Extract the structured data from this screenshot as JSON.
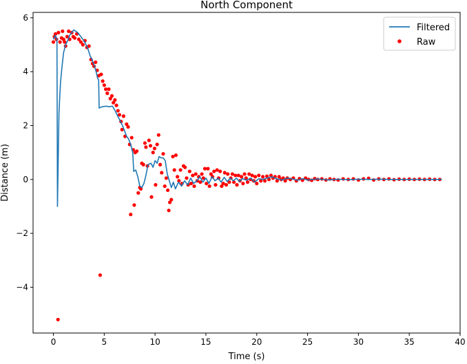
{
  "chart_data": {
    "type": "scatter",
    "title": "North Component",
    "xlabel": "Time (s)",
    "ylabel": "Distance (m)",
    "xlim": [
      -2,
      40
    ],
    "ylim": [
      -5.7,
      6.2
    ],
    "xticks": [
      0,
      5,
      10,
      15,
      20,
      25,
      30,
      35,
      40
    ],
    "yticks": [
      -4,
      -2,
      0,
      2,
      4,
      6
    ],
    "xtick_labels": [
      "0",
      "5",
      "10",
      "15",
      "20",
      "25",
      "30",
      "35",
      "40"
    ],
    "ytick_labels": [
      "−4",
      "−2",
      "0",
      "2",
      "4",
      "6"
    ],
    "grid": false,
    "legend": {
      "position": "top-right",
      "entries": [
        {
          "label": "Filtered",
          "marker": "line",
          "color": "#1f77b4"
        },
        {
          "label": "Raw",
          "marker": "dot",
          "color": "#ff0000"
        }
      ]
    },
    "series": [
      {
        "name": "Filtered",
        "kind": "line",
        "color": "#1f77b4",
        "points": [
          [
            0.0,
            5.2
          ],
          [
            0.2,
            5.35
          ],
          [
            0.35,
            5.2
          ],
          [
            0.4,
            -1.0
          ],
          [
            0.55,
            2.5
          ],
          [
            0.7,
            3.6
          ],
          [
            0.85,
            4.2
          ],
          [
            1.0,
            4.7
          ],
          [
            1.2,
            5.0
          ],
          [
            1.4,
            5.15
          ],
          [
            1.6,
            5.35
          ],
          [
            1.8,
            5.45
          ],
          [
            2.0,
            5.55
          ],
          [
            2.2,
            5.5
          ],
          [
            2.4,
            5.45
          ],
          [
            2.6,
            5.35
          ],
          [
            2.8,
            5.25
          ],
          [
            3.0,
            5.15
          ],
          [
            3.2,
            5.0
          ],
          [
            3.4,
            4.85
          ],
          [
            3.6,
            4.6
          ],
          [
            3.8,
            4.45
          ],
          [
            4.0,
            4.25
          ],
          [
            4.2,
            4.0
          ],
          [
            4.35,
            3.75
          ],
          [
            4.45,
            3.7
          ],
          [
            4.5,
            2.65
          ],
          [
            4.8,
            2.7
          ],
          [
            5.2,
            2.72
          ],
          [
            5.5,
            2.7
          ],
          [
            5.8,
            2.72
          ],
          [
            6.0,
            2.6
          ],
          [
            6.2,
            2.45
          ],
          [
            6.4,
            2.3
          ],
          [
            6.6,
            2.15
          ],
          [
            6.8,
            2.0
          ],
          [
            7.0,
            1.8
          ],
          [
            7.2,
            1.6
          ],
          [
            7.4,
            1.5
          ],
          [
            7.6,
            1.3
          ],
          [
            7.8,
            1.0
          ],
          [
            7.9,
            0.3
          ],
          [
            8.1,
            0.35
          ],
          [
            8.3,
            0.1
          ],
          [
            8.5,
            -0.25
          ],
          [
            8.7,
            -0.3
          ],
          [
            8.9,
            -0.15
          ],
          [
            9.1,
            0.15
          ],
          [
            9.3,
            0.55
          ],
          [
            9.6,
            0.6
          ],
          [
            9.8,
            0.45
          ],
          [
            10.0,
            0.7
          ],
          [
            10.2,
            0.6
          ],
          [
            10.4,
            0.85
          ],
          [
            10.6,
            0.8
          ],
          [
            10.8,
            0.8
          ],
          [
            11.0,
            0.7
          ],
          [
            11.2,
            0.2
          ],
          [
            11.4,
            -0.05
          ],
          [
            11.6,
            -0.3
          ],
          [
            11.8,
            -0.1
          ],
          [
            12.0,
            -0.35
          ],
          [
            12.3,
            -0.1
          ],
          [
            12.6,
            -0.25
          ],
          [
            12.9,
            -0.05
          ],
          [
            13.2,
            -0.2
          ],
          [
            13.5,
            0.05
          ],
          [
            13.8,
            -0.15
          ],
          [
            14.1,
            -0.05
          ],
          [
            14.4,
            0.1
          ],
          [
            14.7,
            -0.1
          ],
          [
            15.0,
            0.05
          ],
          [
            15.3,
            -0.15
          ],
          [
            15.6,
            0.1
          ],
          [
            15.9,
            -0.05
          ],
          [
            16.2,
            0.05
          ],
          [
            16.5,
            -0.1
          ],
          [
            16.8,
            0.08
          ],
          [
            17.1,
            -0.08
          ],
          [
            17.4,
            0.05
          ],
          [
            17.7,
            -0.05
          ],
          [
            18.0,
            0.05
          ],
          [
            18.3,
            -0.08
          ],
          [
            18.6,
            0.03
          ],
          [
            19.0,
            -0.03
          ],
          [
            19.4,
            0.05
          ],
          [
            19.8,
            -0.1
          ],
          [
            20.2,
            0.03
          ],
          [
            20.6,
            0.0
          ],
          [
            21.0,
            0.05
          ],
          [
            21.5,
            0.1
          ],
          [
            22.0,
            0.02
          ],
          [
            22.5,
            -0.02
          ],
          [
            23.0,
            0.05
          ],
          [
            23.5,
            0.02
          ],
          [
            24.0,
            -0.03
          ],
          [
            24.5,
            0.03
          ],
          [
            25.0,
            -0.02
          ],
          [
            26.0,
            0.02
          ],
          [
            27.0,
            -0.02
          ],
          [
            28.0,
            0.01
          ],
          [
            29.0,
            -0.01
          ],
          [
            30.0,
            0.01
          ],
          [
            31.0,
            0.0
          ],
          [
            32.0,
            0.01
          ],
          [
            33.0,
            0.0
          ],
          [
            34.0,
            0.0
          ],
          [
            35.0,
            0.0
          ],
          [
            36.0,
            0.0
          ],
          [
            37.0,
            0.0
          ],
          [
            38.2,
            0.0
          ]
        ]
      },
      {
        "name": "Raw",
        "kind": "scatter",
        "color": "#ff0000",
        "points": [
          [
            0.0,
            5.1
          ],
          [
            0.1,
            5.3
          ],
          [
            0.2,
            5.4
          ],
          [
            0.3,
            5.2
          ],
          [
            0.45,
            -5.2
          ],
          [
            0.5,
            5.45
          ],
          [
            0.65,
            5.1
          ],
          [
            0.8,
            5.25
          ],
          [
            0.9,
            5.5
          ],
          [
            1.0,
            5.2
          ],
          [
            1.1,
            5.1
          ],
          [
            1.2,
            4.95
          ],
          [
            1.35,
            5.3
          ],
          [
            1.5,
            5.5
          ],
          [
            1.6,
            5.2
          ],
          [
            1.8,
            5.45
          ],
          [
            1.95,
            5.3
          ],
          [
            2.1,
            5.25
          ],
          [
            2.3,
            5.4
          ],
          [
            2.5,
            5.2
          ],
          [
            2.7,
            5.1
          ],
          [
            2.9,
            5.0
          ],
          [
            3.1,
            5.15
          ],
          [
            3.3,
            4.9
          ],
          [
            3.5,
            4.95
          ],
          [
            3.7,
            4.45
          ],
          [
            3.85,
            4.3
          ],
          [
            4.0,
            4.2
          ],
          [
            4.15,
            4.35
          ],
          [
            4.3,
            4.05
          ],
          [
            4.45,
            3.85
          ],
          [
            4.6,
            -3.55
          ],
          [
            4.7,
            3.9
          ],
          [
            4.85,
            3.65
          ],
          [
            5.0,
            3.5
          ],
          [
            5.15,
            3.35
          ],
          [
            5.3,
            3.2
          ],
          [
            5.45,
            3.35
          ],
          [
            5.6,
            3.0
          ],
          [
            5.75,
            3.1
          ],
          [
            5.9,
            2.85
          ],
          [
            6.05,
            2.95
          ],
          [
            6.2,
            2.75
          ],
          [
            6.35,
            2.55
          ],
          [
            6.5,
            2.4
          ],
          [
            6.65,
            2.15
          ],
          [
            6.75,
            1.85
          ],
          [
            6.9,
            2.35
          ],
          [
            7.05,
            1.6
          ],
          [
            7.2,
            2.05
          ],
          [
            7.35,
            1.95
          ],
          [
            7.5,
            1.3
          ],
          [
            7.6,
            -1.3
          ],
          [
            7.7,
            1.55
          ],
          [
            7.85,
            1.1
          ],
          [
            7.95,
            -0.95
          ],
          [
            8.05,
            1.0
          ],
          [
            8.2,
            1.05
          ],
          [
            8.35,
            -0.5
          ],
          [
            8.5,
            -0.3
          ],
          [
            8.6,
            -0.35
          ],
          [
            8.7,
            0.6
          ],
          [
            8.85,
            0.55
          ],
          [
            9.0,
            1.35
          ],
          [
            9.1,
            1.2
          ],
          [
            9.25,
            0.5
          ],
          [
            9.4,
            1.45
          ],
          [
            9.55,
            1.25
          ],
          [
            9.65,
            -0.65
          ],
          [
            9.8,
            1.0
          ],
          [
            9.95,
            1.15
          ],
          [
            10.05,
            -0.2
          ],
          [
            10.2,
            1.3
          ],
          [
            10.35,
            1.65
          ],
          [
            10.5,
            0.55
          ],
          [
            10.65,
            0.25
          ],
          [
            10.8,
            0.95
          ],
          [
            10.95,
            -0.25
          ],
          [
            11.1,
            0.05
          ],
          [
            11.25,
            -0.4
          ],
          [
            11.35,
            -1.15
          ],
          [
            11.45,
            -0.85
          ],
          [
            11.6,
            -0.75
          ],
          [
            11.75,
            0.85
          ],
          [
            11.9,
            0.35
          ],
          [
            12.05,
            0.9
          ],
          [
            12.2,
            0.1
          ],
          [
            12.35,
            -0.05
          ],
          [
            12.5,
            0.35
          ],
          [
            12.65,
            -0.15
          ],
          [
            12.8,
            0.5
          ],
          [
            12.95,
            0.45
          ],
          [
            13.1,
            0.05
          ],
          [
            13.25,
            -0.2
          ],
          [
            13.4,
            0.3
          ],
          [
            13.55,
            -0.15
          ],
          [
            13.7,
            0.15
          ],
          [
            13.85,
            -0.25
          ],
          [
            14.0,
            0.2
          ],
          [
            14.15,
            -0.05
          ],
          [
            14.3,
            0.1
          ],
          [
            14.45,
            -0.1
          ],
          [
            14.6,
            0.2
          ],
          [
            14.75,
            0.05
          ],
          [
            14.9,
            0.4
          ],
          [
            15.05,
            -0.15
          ],
          [
            15.2,
            0.4
          ],
          [
            15.35,
            -0.25
          ],
          [
            15.5,
            0.2
          ],
          [
            15.65,
            0.1
          ],
          [
            15.8,
            0.3
          ],
          [
            15.95,
            -0.2
          ],
          [
            16.1,
            0.35
          ],
          [
            16.25,
            0.05
          ],
          [
            16.4,
            0.3
          ],
          [
            16.55,
            -0.25
          ],
          [
            16.7,
            -0.15
          ],
          [
            16.85,
            0.25
          ],
          [
            17.0,
            -0.2
          ],
          [
            17.15,
            0.2
          ],
          [
            17.3,
            -0.1
          ],
          [
            17.45,
            0.05
          ],
          [
            17.6,
            0.2
          ],
          [
            17.75,
            -0.1
          ],
          [
            17.9,
            0.15
          ],
          [
            18.05,
            -0.2
          ],
          [
            18.2,
            0.15
          ],
          [
            18.35,
            -0.05
          ],
          [
            18.5,
            0.1
          ],
          [
            18.65,
            -0.15
          ],
          [
            18.8,
            0.2
          ],
          [
            18.95,
            0.05
          ],
          [
            19.1,
            -0.1
          ],
          [
            19.25,
            0.2
          ],
          [
            19.4,
            0.0
          ],
          [
            19.55,
            0.15
          ],
          [
            19.7,
            -0.05
          ],
          [
            19.85,
            0.1
          ],
          [
            20.0,
            -0.15
          ],
          [
            20.2,
            0.15
          ],
          [
            20.4,
            -0.05
          ],
          [
            20.6,
            0.1
          ],
          [
            20.8,
            -0.05
          ],
          [
            21.0,
            0.12
          ],
          [
            21.2,
            0.0
          ],
          [
            21.4,
            0.15
          ],
          [
            21.6,
            0.05
          ],
          [
            21.8,
            0.1
          ],
          [
            22.0,
            -0.05
          ],
          [
            22.2,
            0.1
          ],
          [
            22.4,
            0.0
          ],
          [
            22.6,
            0.05
          ],
          [
            22.8,
            -0.05
          ],
          [
            23.0,
            0.05
          ],
          [
            23.3,
            0.0
          ],
          [
            23.6,
            0.05
          ],
          [
            23.9,
            -0.05
          ],
          [
            24.2,
            0.03
          ],
          [
            24.5,
            -0.03
          ],
          [
            24.8,
            0.05
          ],
          [
            25.1,
            0.0
          ],
          [
            25.4,
            -0.03
          ],
          [
            25.7,
            0.03
          ],
          [
            26.0,
            0.0
          ],
          [
            26.4,
            0.02
          ],
          [
            26.8,
            -0.02
          ],
          [
            27.2,
            0.02
          ],
          [
            27.6,
            0.0
          ],
          [
            28.0,
            -0.02
          ],
          [
            28.5,
            0.02
          ],
          [
            29.0,
            0.0
          ],
          [
            29.5,
            0.02
          ],
          [
            30.0,
            -0.02
          ],
          [
            30.5,
            0.02
          ],
          [
            31.0,
            0.04
          ],
          [
            31.5,
            -0.02
          ],
          [
            32.0,
            0.02
          ],
          [
            32.5,
            0.0
          ],
          [
            33.0,
            0.02
          ],
          [
            33.5,
            -0.01
          ],
          [
            34.0,
            0.01
          ],
          [
            34.5,
            0.0
          ],
          [
            35.0,
            0.01
          ],
          [
            35.5,
            0.0
          ],
          [
            36.0,
            0.01
          ],
          [
            36.5,
            0.0
          ],
          [
            37.0,
            0.01
          ],
          [
            37.5,
            0.0
          ],
          [
            38.0,
            0.0
          ]
        ]
      }
    ]
  }
}
